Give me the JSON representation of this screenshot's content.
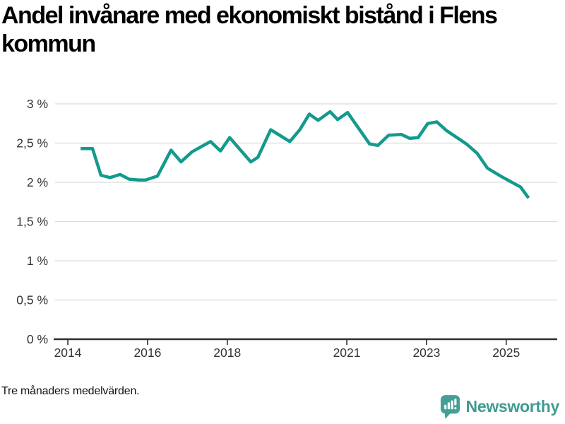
{
  "title_lines": [
    "Andel invånare med ekonomiskt bistånd i Flens",
    "kommun"
  ],
  "footnote": "Tre månaders medelvärden.",
  "brand": {
    "name": "Newsworthy",
    "icon": "bar-chart-speech-bubble-icon",
    "wordmark_color": "#3f9b91",
    "icon_color": "#44a096"
  },
  "colors": {
    "background": "#ffffff",
    "line": "#149a8c",
    "grid": "#dcdcdc",
    "axis": "#2e2e2e",
    "tick_text": "#333333",
    "title_text": "#000000",
    "footnote_text": "#111111"
  },
  "chart_data": {
    "type": "line",
    "title": "Andel invånare med ekonomiskt bistånd i Flens kommun",
    "xlabel": "",
    "ylabel": "",
    "grid": true,
    "legend": false,
    "xlim": [
      2013.68,
      2026.28
    ],
    "ylim": [
      0,
      3
    ],
    "x_ticks": [
      {
        "value": 2014,
        "label": "2014"
      },
      {
        "value": 2016,
        "label": "2016"
      },
      {
        "value": 2018,
        "label": "2018"
      },
      {
        "value": 2021,
        "label": "2021"
      },
      {
        "value": 2023,
        "label": "2023"
      },
      {
        "value": 2025,
        "label": "2025"
      }
    ],
    "y_ticks": [
      {
        "value": 0,
        "label": "0 %"
      },
      {
        "value": 0.5,
        "label": "0,5 %"
      },
      {
        "value": 1,
        "label": "1 %"
      },
      {
        "value": 1.5,
        "label": "1,5 %"
      },
      {
        "value": 2,
        "label": "2 %"
      },
      {
        "value": 2.5,
        "label": "2,5 %"
      },
      {
        "value": 3,
        "label": "3 %"
      }
    ],
    "series": [
      {
        "name": "Andel invånare med ekonomiskt bistånd",
        "color": "#149a8c",
        "points": [
          [
            2014.32,
            2.43
          ],
          [
            2014.62,
            2.43
          ],
          [
            2014.83,
            2.09
          ],
          [
            2015.06,
            2.06
          ],
          [
            2015.31,
            2.1
          ],
          [
            2015.54,
            2.04
          ],
          [
            2015.79,
            2.03
          ],
          [
            2015.95,
            2.03
          ],
          [
            2016.25,
            2.08
          ],
          [
            2016.59,
            2.41
          ],
          [
            2016.84,
            2.26
          ],
          [
            2017.12,
            2.39
          ],
          [
            2017.58,
            2.52
          ],
          [
            2017.83,
            2.4
          ],
          [
            2018.06,
            2.57
          ],
          [
            2018.59,
            2.26
          ],
          [
            2018.77,
            2.32
          ],
          [
            2019.09,
            2.67
          ],
          [
            2019.57,
            2.52
          ],
          [
            2019.82,
            2.67
          ],
          [
            2020.06,
            2.87
          ],
          [
            2020.28,
            2.79
          ],
          [
            2020.58,
            2.9
          ],
          [
            2020.77,
            2.8
          ],
          [
            2021.02,
            2.89
          ],
          [
            2021.57,
            2.49
          ],
          [
            2021.78,
            2.47
          ],
          [
            2022.05,
            2.6
          ],
          [
            2022.37,
            2.61
          ],
          [
            2022.58,
            2.56
          ],
          [
            2022.79,
            2.57
          ],
          [
            2023.03,
            2.75
          ],
          [
            2023.26,
            2.77
          ],
          [
            2023.5,
            2.66
          ],
          [
            2024.0,
            2.49
          ],
          [
            2024.27,
            2.37
          ],
          [
            2024.53,
            2.18
          ],
          [
            2024.89,
            2.07
          ],
          [
            2025.36,
            1.94
          ],
          [
            2025.56,
            1.8
          ]
        ]
      }
    ]
  }
}
